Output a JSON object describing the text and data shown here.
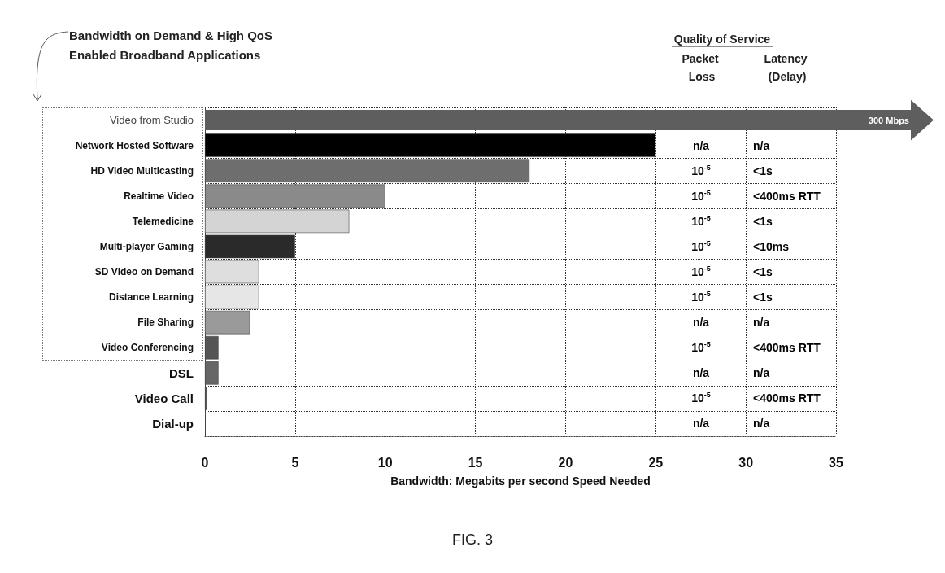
{
  "chart_data": {
    "type": "bar",
    "orientation": "horizontal",
    "title": "Bandwidth on Demand & High QoS Enabled Broadband Applications",
    "xlabel": "Bandwidth: Megabits per second Speed Needed",
    "categories": [
      "Video from Studio",
      "Network Hosted Software",
      "HD Video Multicasting",
      "Realtime Video",
      "Telemedicine",
      "Multi-player Gaming",
      "SD Video on Demand",
      "Distance Learning",
      "File Sharing",
      "Video Conferencing",
      "DSL",
      "Video Call",
      "Dial-up"
    ],
    "values": [
      null,
      25,
      18,
      10,
      8,
      5,
      3,
      3,
      2.5,
      0.75,
      0.75,
      0.1,
      null
    ],
    "colors": [
      "#555555",
      "#000000",
      "#6e6e6e",
      "#8a8a8a",
      "#d4d4d4",
      "#2a2a2a",
      "#dedede",
      "#e6e6e6",
      "#9a9a9a",
      "#555555",
      "#666666",
      "#555555",
      "#555555"
    ],
    "xlim": [
      0,
      35
    ],
    "xticks": [
      0,
      5,
      10,
      15,
      20,
      25,
      30,
      35
    ],
    "grid": true,
    "annotations": [
      "Quality of Service",
      "Packet Loss",
      "Latency (Delay)",
      "FIG. 3",
      "300 Mbps",
      "n/a",
      "n/a",
      "10$^{-5}$",
      "<1s",
      "10$^{-5}$",
      "<400ms RTT",
      "10$^{-5}$",
      "<1s",
      "10$^{-5}$",
      "<10ms",
      "10$^{-5}$",
      "<1s",
      "10$^{-5}$",
      "<1s",
      "n/a",
      "n/a",
      "10$^{-5}$",
      "<400ms RTT",
      "n/a",
      "n/a",
      "10$^{-5}$",
      "<400ms RTT",
      "n/a",
      "n/a"
    ]
  }
}
